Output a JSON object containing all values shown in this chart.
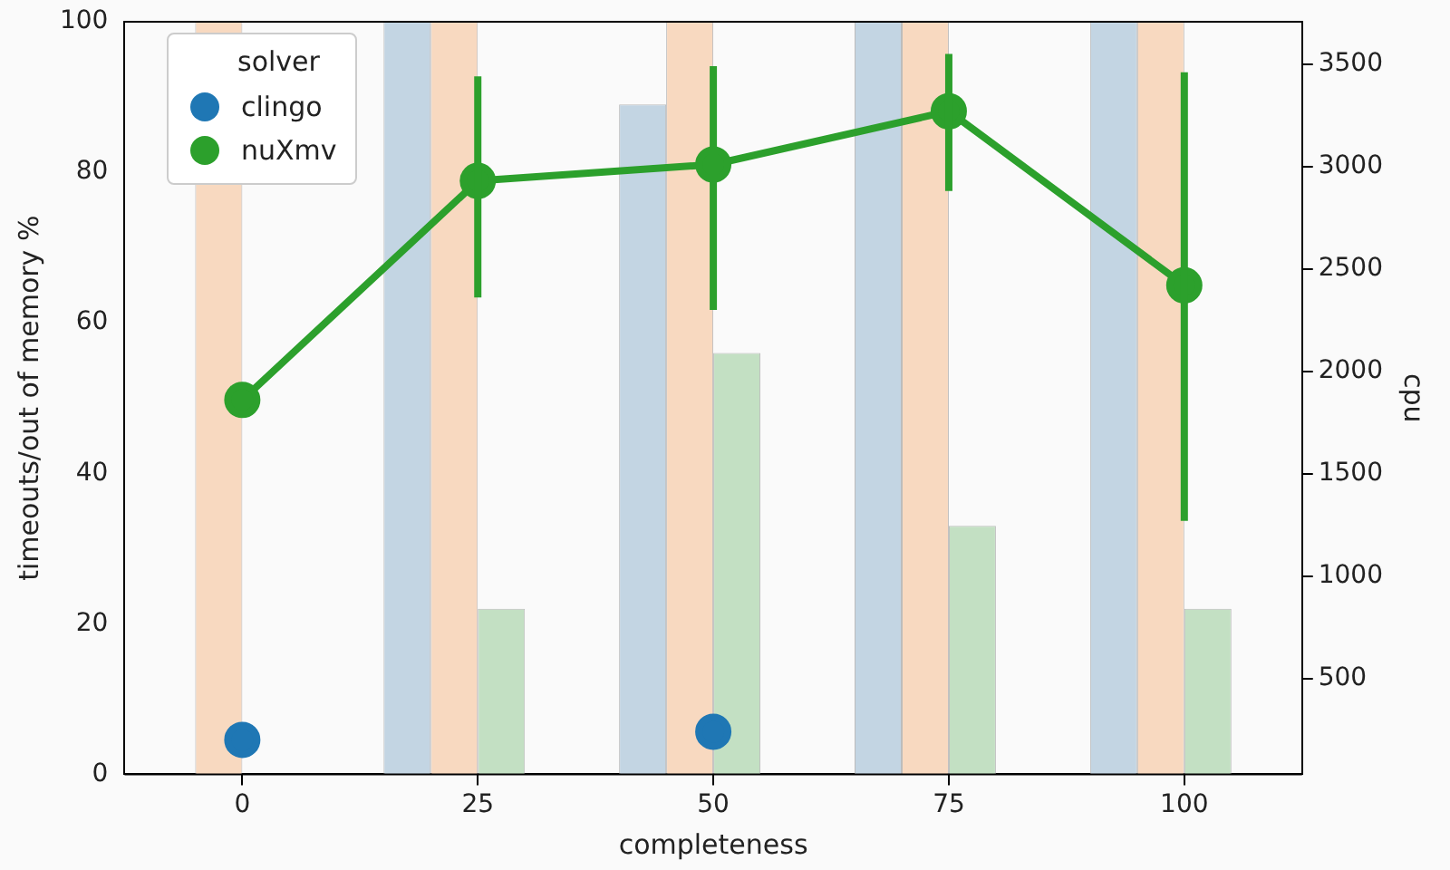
{
  "chart_data": {
    "type": "bar",
    "xlabel": "completeness",
    "ylabel": "timeouts/out of memory %",
    "y2label": "cpu",
    "legend_title": "solver",
    "categories": [
      "0",
      "25",
      "50",
      "75",
      "100"
    ],
    "ylim": [
      0,
      100
    ],
    "yticks": [
      0,
      20,
      40,
      60,
      80,
      100
    ],
    "y2lim": [
      32,
      3707
    ],
    "y2ticks": [
      500,
      1000,
      1500,
      2000,
      2500,
      3000,
      3500
    ],
    "grid": false,
    "legend": "top left",
    "series": [
      {
        "color": "#c3d5e3",
        "values": [
          null,
          100,
          89,
          100,
          100
        ]
      },
      {
        "color": "#f8d9c0",
        "values": [
          100,
          100,
          100,
          100,
          100
        ]
      },
      {
        "color": "#c3e0c3",
        "values": [
          null,
          22,
          56,
          33,
          22
        ]
      },
      {
        "name": "clingo",
        "type": "scatter",
        "axis": "y2",
        "marker": "circle",
        "color": "#1f77b4",
        "values": [
          200,
          null,
          240,
          null,
          null
        ]
      },
      {
        "name": "nuXmv",
        "type": "line",
        "axis": "y2",
        "marker": "circle",
        "color": "#2ca02c",
        "values": [
          1860,
          2930,
          3010,
          3270,
          2420
        ],
        "errors": [
          null,
          [
            2360,
            3440
          ],
          [
            2300,
            3490
          ],
          [
            2880,
            3550
          ],
          [
            1270,
            3460
          ]
        ]
      }
    ]
  }
}
